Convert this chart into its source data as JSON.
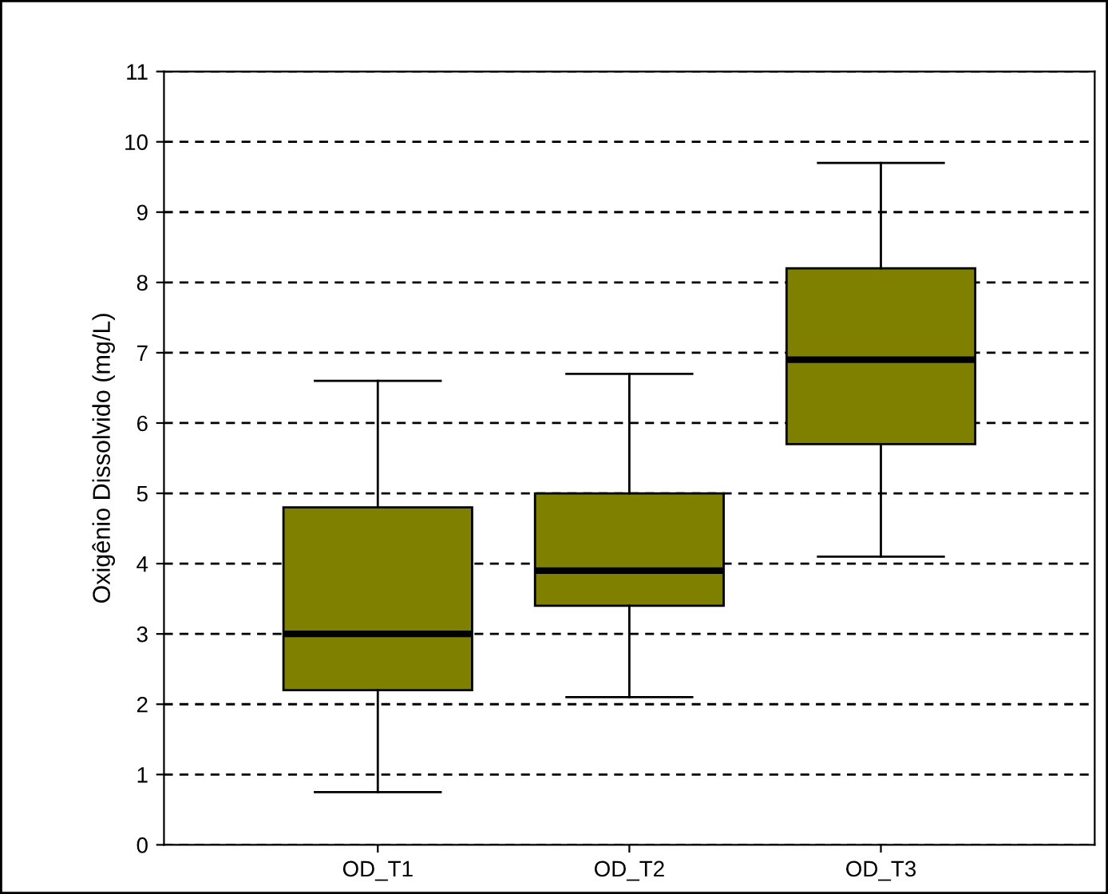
{
  "chart_data": {
    "type": "box",
    "ylabel": "Oxigênio Dissolvido (mg/L)",
    "categories": [
      "OD_T1",
      "OD_T2",
      "OD_T3"
    ],
    "boxes": [
      {
        "low": 0.75,
        "q1": 2.2,
        "median": 3.0,
        "q3": 4.8,
        "high": 6.6
      },
      {
        "low": 2.1,
        "q1": 3.4,
        "median": 3.9,
        "q3": 5.0,
        "high": 6.7
      },
      {
        "low": 4.1,
        "q1": 5.7,
        "median": 6.9,
        "q3": 8.2,
        "high": 9.7
      }
    ],
    "color": "#808000",
    "ylim": [
      0,
      11
    ],
    "yticks": [
      0,
      1,
      2,
      3,
      4,
      5,
      6,
      7,
      8,
      9,
      10,
      11
    ],
    "grid": "y"
  }
}
